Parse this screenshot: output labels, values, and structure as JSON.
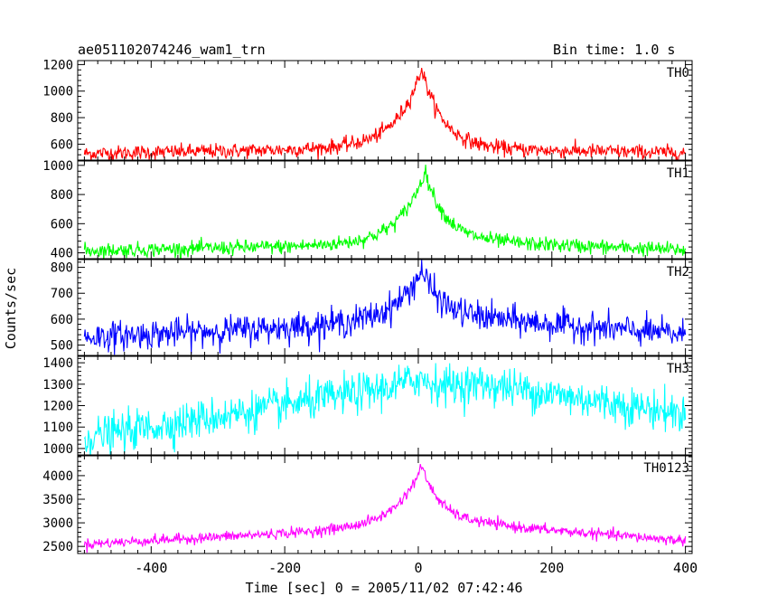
{
  "header": {
    "title": "ae051102074246_wam1_trn",
    "bin_time": "Bin time: 1.0 s"
  },
  "chart_data": {
    "type": "line",
    "xlabel": "Time [sec] 0 = 2005/11/02 07:42:46",
    "ylabel": "Counts/sec",
    "xlim": [
      -510,
      410
    ],
    "x_ticks": [
      -400,
      -200,
      0,
      200,
      400
    ],
    "x": {
      "start": -500,
      "end": 400,
      "step": 1
    },
    "panels": [
      {
        "name": "TH0",
        "color": "#ff0000",
        "ylim": [
          480,
          1230
        ],
        "yticks": [
          600,
          800,
          1000,
          1200
        ],
        "baseline_start": 530,
        "baseline_mid": 565,
        "peak": 1170,
        "peak_time": 5,
        "tail_level": 560,
        "end_level": 535,
        "noise": 28
      },
      {
        "name": "TH1",
        "color": "#00ff00",
        "ylim": [
          360,
          1030
        ],
        "yticks": [
          400,
          600,
          800,
          1000
        ],
        "baseline_start": 415,
        "baseline_mid": 450,
        "peak": 960,
        "peak_time": 10,
        "tail_level": 470,
        "end_level": 420,
        "noise": 25
      },
      {
        "name": "TH2",
        "color": "#0000ff",
        "ylim": [
          460,
          830
        ],
        "yticks": [
          500,
          600,
          700,
          800
        ],
        "baseline_start": 530,
        "baseline_mid": 580,
        "peak": 790,
        "peak_time": 5,
        "tail_level": 600,
        "end_level": 540,
        "noise": 28
      },
      {
        "name": "TH3",
        "color": "#00ffff",
        "ylim": [
          970,
          1430
        ],
        "yticks": [
          1000,
          1100,
          1200,
          1300,
          1400
        ],
        "baseline_start": 1050,
        "baseline_mid": 1250,
        "peak": 1330,
        "peak_time": 0,
        "tail_level": 1300,
        "end_level": 1160,
        "noise": 45
      },
      {
        "name": "TH0123",
        "color": "#ff00ff",
        "ylim": [
          2350,
          4420
        ],
        "yticks": [
          2500,
          3000,
          3500,
          4000
        ],
        "baseline_start": 2550,
        "baseline_mid": 2850,
        "peak": 4200,
        "peak_time": 5,
        "tail_level": 2950,
        "end_level": 2620,
        "noise": 55
      }
    ]
  }
}
